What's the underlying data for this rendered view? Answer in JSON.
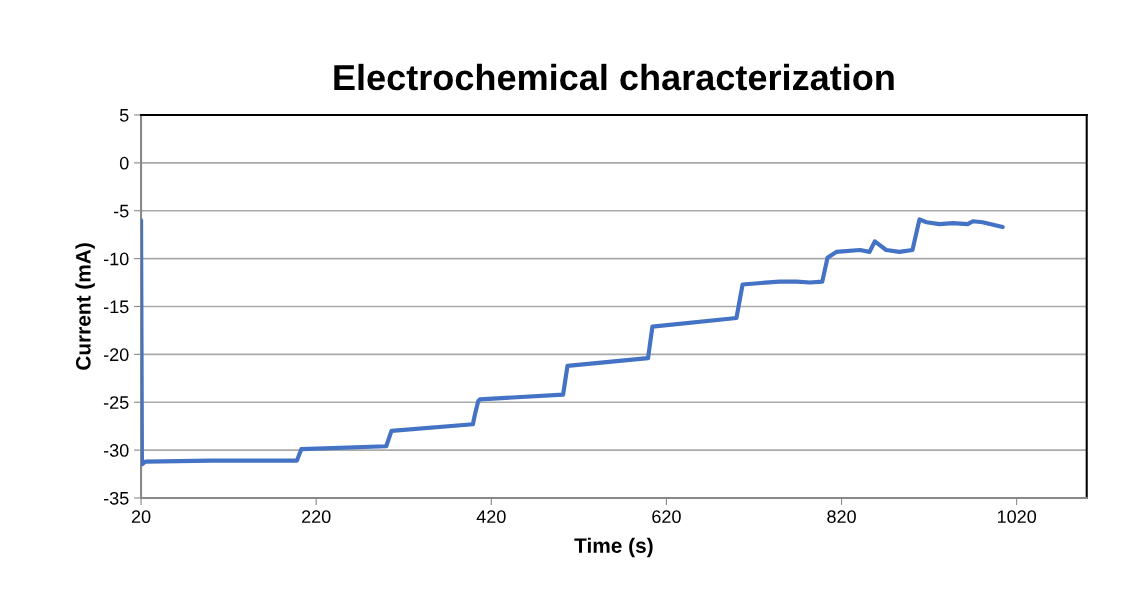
{
  "chart_data": {
    "type": "line",
    "title": "Electrochemical characterization",
    "xlabel": "Time (s)",
    "ylabel": "Current (mA)",
    "xlim": [
      20,
      1100
    ],
    "xticks": [
      20,
      220,
      420,
      620,
      820,
      1020
    ],
    "ylim": [
      -35,
      5
    ],
    "yticks": [
      -35,
      -30,
      -25,
      -20,
      -15,
      -10,
      -5,
      0,
      5
    ],
    "grid": "y",
    "marker": "none",
    "line_style": "solid",
    "series": [
      {
        "color": "#4472c4",
        "x": [
          20,
          21,
          25,
          100,
          198,
          203,
          300,
          306,
          399,
          401,
          405,
          407,
          502,
          507,
          599,
          604,
          700,
          707,
          749,
          769,
          784,
          798,
          804,
          814,
          841,
          852,
          858,
          871,
          886,
          901,
          909,
          917,
          932,
          947,
          964,
          970,
          981,
          1004
        ],
        "values": [
          -6.0,
          -31.5,
          -31.2,
          -31.1,
          -31.1,
          -29.9,
          -29.6,
          -28.0,
          -27.3,
          -26.4,
          -24.9,
          -24.7,
          -24.2,
          -21.2,
          -20.4,
          -17.1,
          -16.2,
          -12.7,
          -12.4,
          -12.4,
          -12.5,
          -12.4,
          -9.9,
          -9.3,
          -9.1,
          -9.3,
          -8.2,
          -9.1,
          -9.3,
          -9.1,
          -5.9,
          -6.2,
          -6.4,
          -6.3,
          -6.4,
          -6.1,
          -6.2,
          -6.7
        ]
      }
    ]
  }
}
